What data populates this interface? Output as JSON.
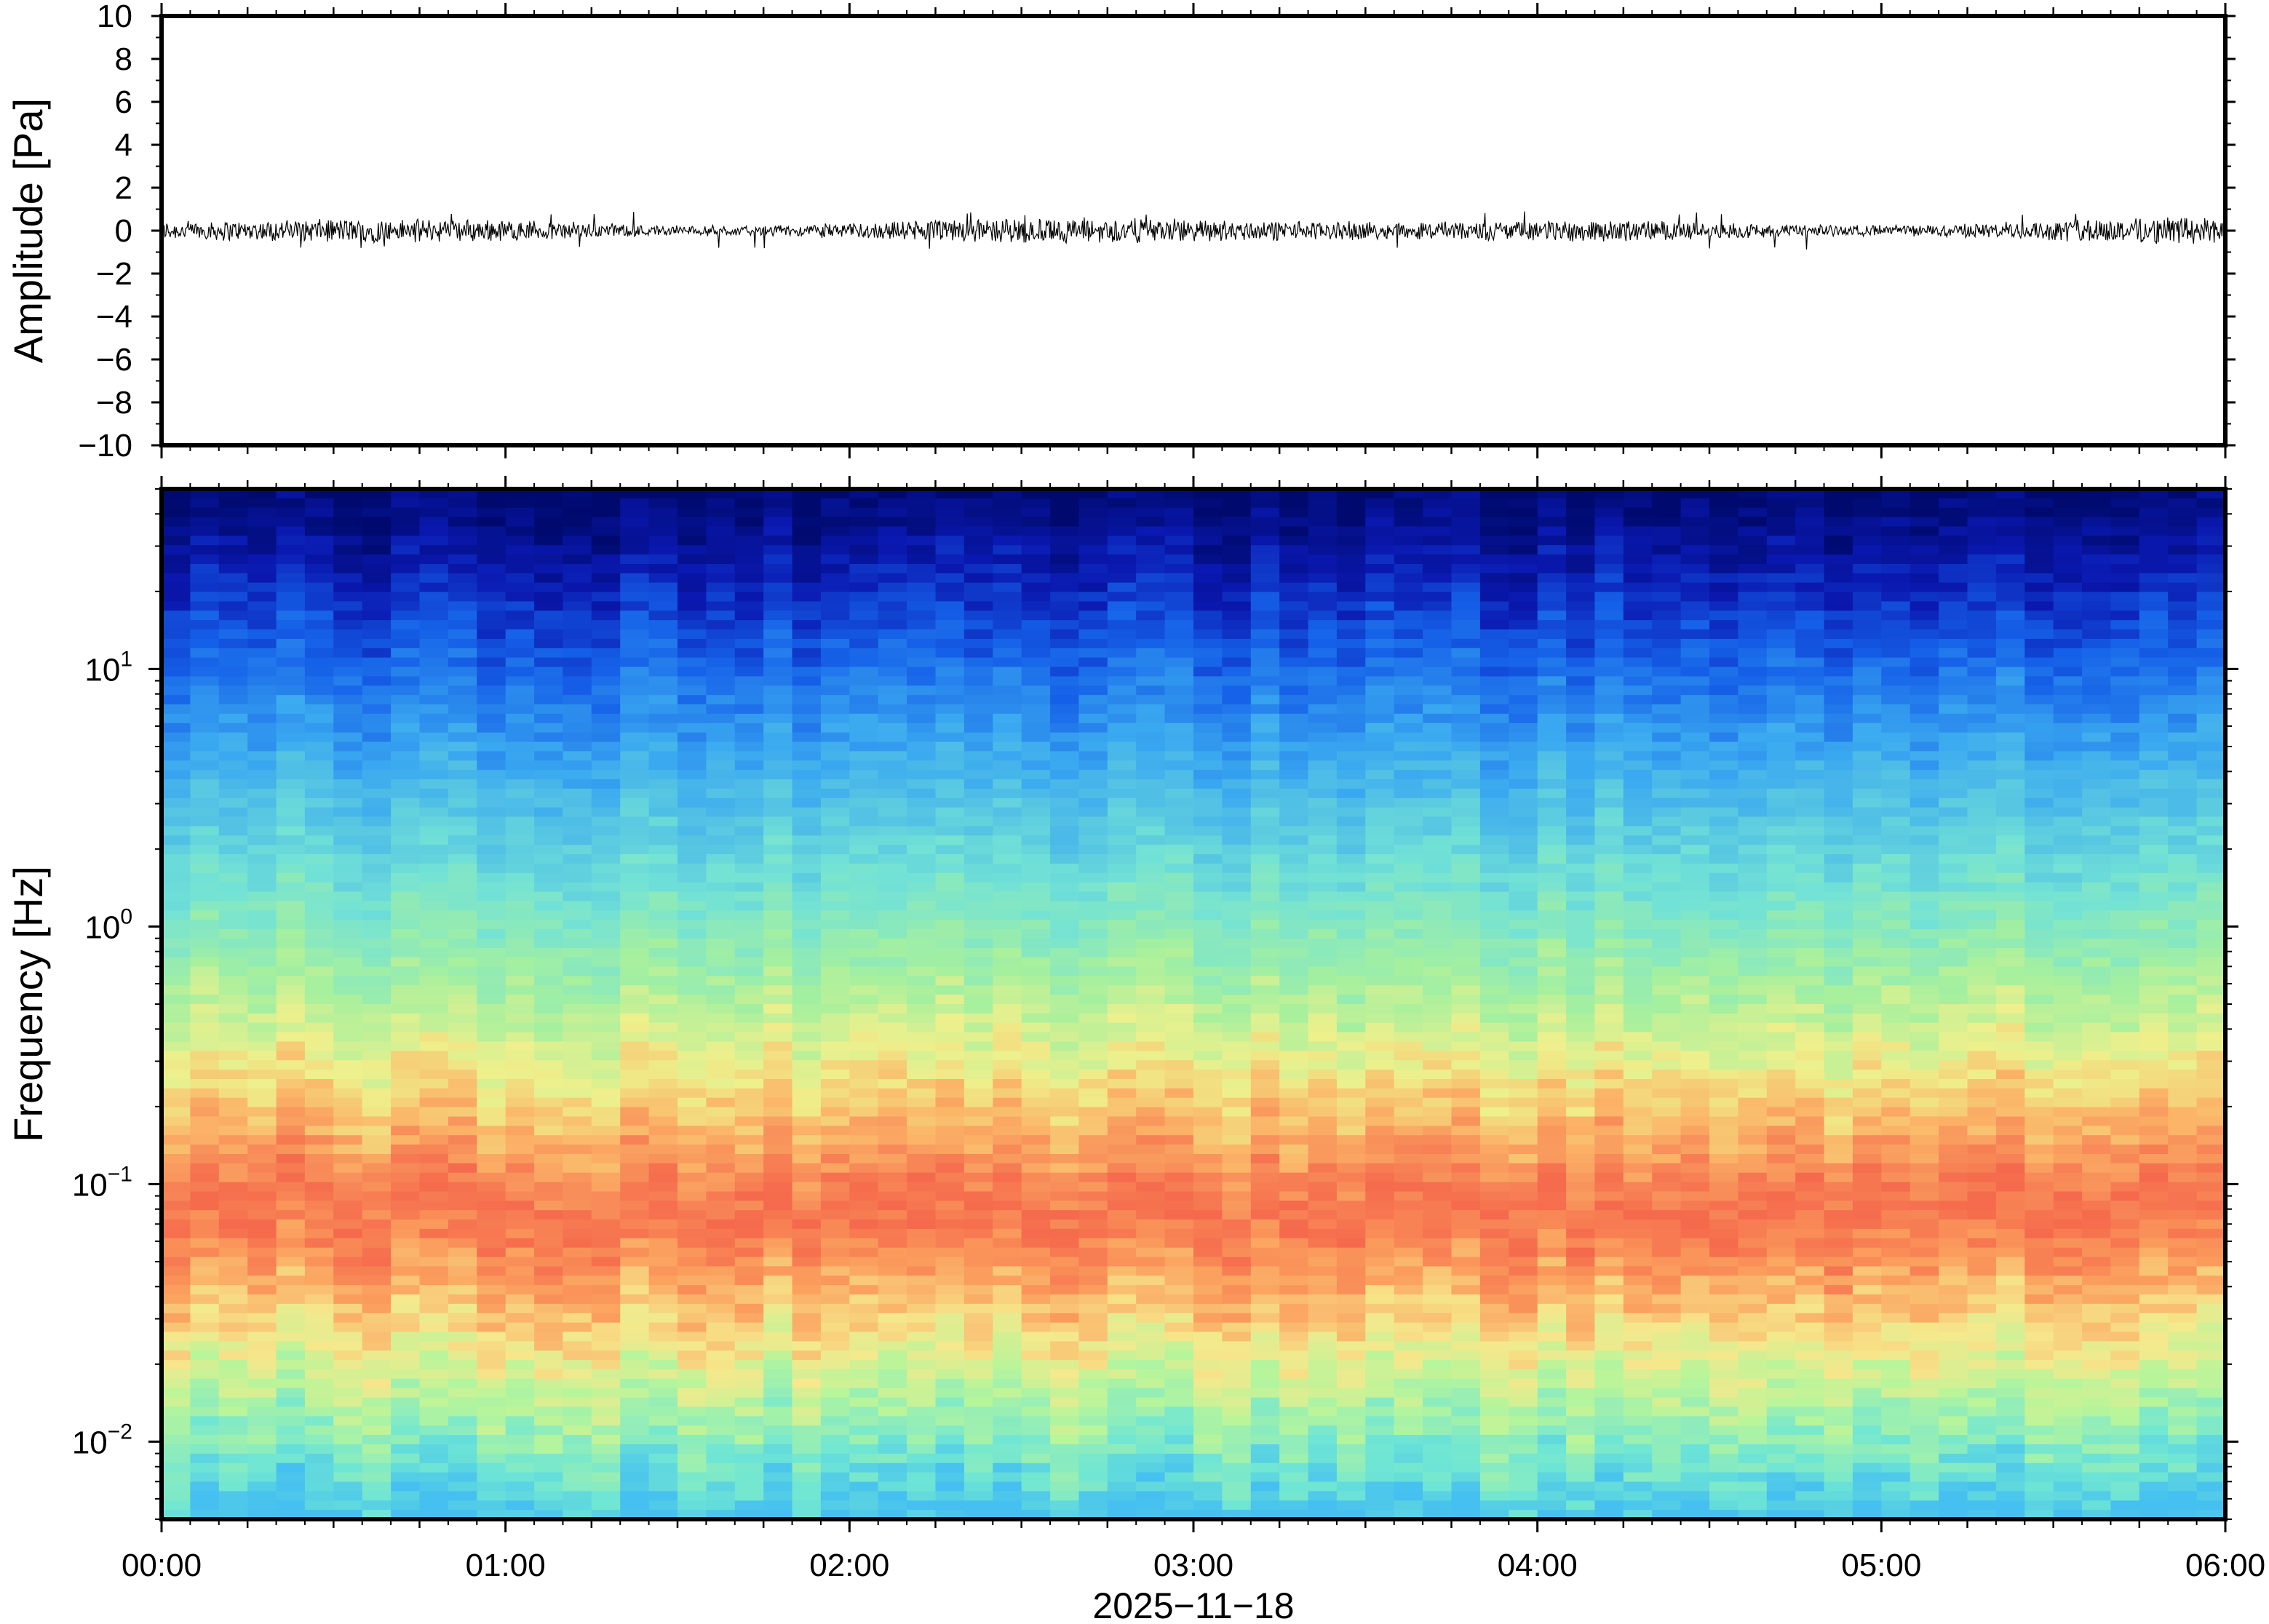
{
  "chart_data": [
    {
      "type": "line",
      "ylabel": "Amplitude [Pa]",
      "ylim": [
        -10,
        10
      ],
      "yticks": [
        10,
        8,
        6,
        4,
        2,
        0,
        -2,
        -4,
        -6,
        -8,
        -10
      ],
      "ytick_labels": [
        "10",
        "8",
        "6",
        "4",
        "2",
        "0",
        "−2",
        "−4",
        "−6",
        "−8",
        "−10"
      ],
      "x_range": [
        "00:00",
        "06:00"
      ],
      "trace": {
        "description_mean": 0,
        "typical_peak_amplitude": 0.6,
        "max_peak_amplitude": 0.9
      }
    },
    {
      "type": "heatmap",
      "ylabel": "Frequency [Hz]",
      "yscale": "log",
      "ylim": [
        0.005,
        50
      ],
      "yticks": [
        10,
        1,
        0.1,
        0.01
      ],
      "ytick_labels": [
        {
          "base": "10",
          "exp": "1"
        },
        {
          "base": "10",
          "exp": "0"
        },
        {
          "base": "10",
          "exp": "−1"
        },
        {
          "base": "10",
          "exp": "−2"
        }
      ],
      "xticks": [
        "00:00",
        "01:00",
        "02:00",
        "03:00",
        "04:00",
        "05:00",
        "06:00"
      ],
      "xlabel": "2025−11−18",
      "colormap": "jet",
      "band_profile": [
        {
          "freq": 50,
          "color": "#000a6e"
        },
        {
          "freq": 25,
          "color": "#0a18b0"
        },
        {
          "freq": 12,
          "color": "#1560e8"
        },
        {
          "freq": 5,
          "color": "#3aa8f0"
        },
        {
          "freq": 1.5,
          "color": "#72e2d6"
        },
        {
          "freq": 0.6,
          "color": "#a6f09e"
        },
        {
          "freq": 0.3,
          "color": "#eef08c"
        },
        {
          "freq": 0.17,
          "color": "#fbb568"
        },
        {
          "freq": 0.08,
          "color": "#f5694c"
        },
        {
          "freq": 0.045,
          "color": "#fba05e"
        },
        {
          "freq": 0.025,
          "color": "#f6e88c"
        },
        {
          "freq": 0.015,
          "color": "#b8f59a"
        },
        {
          "freq": 0.008,
          "color": "#6fe6d4"
        },
        {
          "freq": 0.005,
          "color": "#45c0f0"
        }
      ]
    }
  ]
}
